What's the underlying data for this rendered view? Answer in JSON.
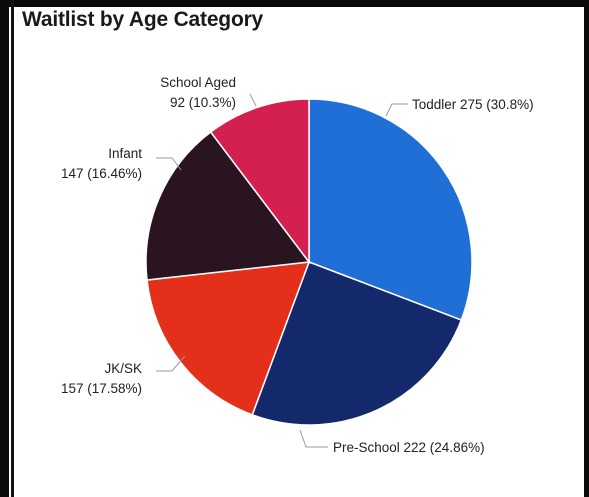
{
  "title": "Waitlist by Age Category",
  "chart_data": {
    "type": "pie",
    "title": "Waitlist by Age Category",
    "slices": [
      {
        "name": "Toddler",
        "value": 275,
        "percent_label": "30.8%",
        "label_line1": "Toddler 275 (30.8%)",
        "label_line2": "",
        "color": "#1f6fd6"
      },
      {
        "name": "Pre-School",
        "value": 222,
        "percent_label": "24.86%",
        "label_line1": "Pre-School 222 (24.86%)",
        "label_line2": "",
        "color": "#13296b"
      },
      {
        "name": "JK/SK",
        "value": 157,
        "percent_label": "17.58%",
        "label_line1": "JK/SK",
        "label_line2": "157 (17.58%)",
        "color": "#e4301b"
      },
      {
        "name": "Infant",
        "value": 147,
        "percent_label": "16.46%",
        "label_line1": "Infant",
        "label_line2": "147 (16.46%)",
        "color": "#2a1420"
      },
      {
        "name": "School Aged",
        "value": 92,
        "percent_label": "10.3%",
        "label_line1": "School Aged",
        "label_line2": "92 (10.3%)",
        "color": "#d3204e"
      }
    ]
  }
}
